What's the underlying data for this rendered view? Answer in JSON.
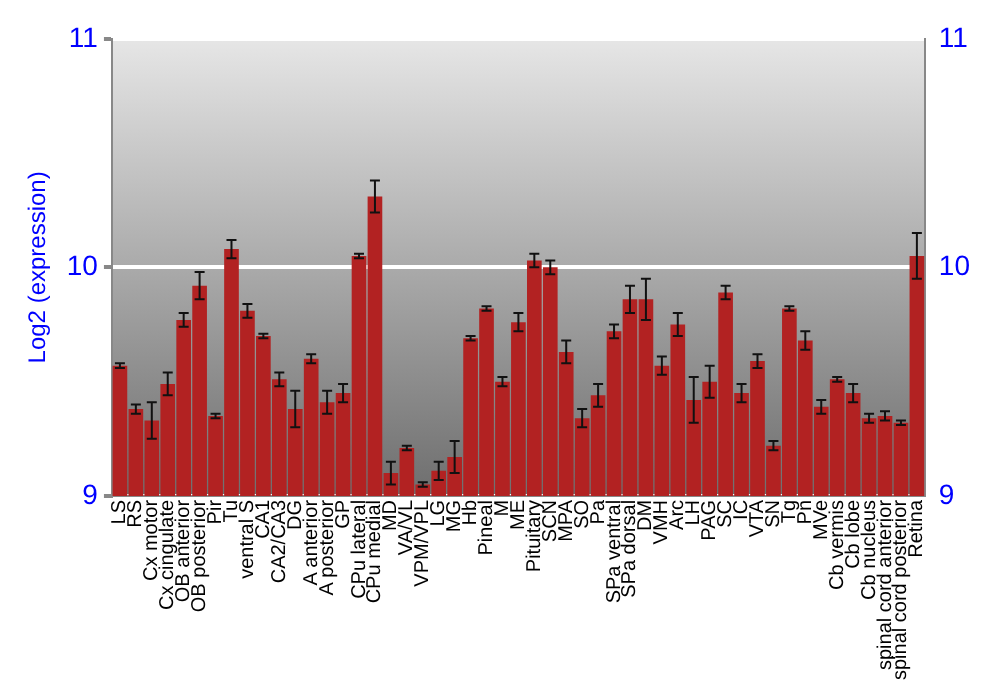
{
  "chart_data": {
    "type": "bar",
    "ylabel": "Log2 (expression)",
    "categories": [
      "LS",
      "RS",
      "Cx motor",
      "Cx cingulate",
      "OB anterior",
      "OB posterior",
      "Pir",
      "Tu",
      "ventral S",
      "CA1",
      "CA2/CA3",
      "DG",
      "A anterior",
      "A posterior",
      "GP",
      "CPu lateral",
      "CPu medial",
      "MD",
      "VA/VL",
      "VPM/VPL",
      "LG",
      "MG",
      "Hb",
      "Pineal",
      "M",
      "ME",
      "Pituitary",
      "SCN",
      "MPA",
      "SO",
      "Pa",
      "SPa ventral",
      "SPa dorsal",
      "DM",
      "VMH",
      "Arc",
      "LH",
      "PAG",
      "SC",
      "IC",
      "VTA",
      "SN",
      "Tg",
      "Pn",
      "MVe",
      "Cb vermis",
      "Cb lobe",
      "Cb nucleus",
      "spinal cord anterior",
      "spinal cord posterior",
      "Retina"
    ],
    "series": [
      {
        "color": "#b22222",
        "values": [
          9.57,
          9.38,
          9.33,
          9.49,
          9.77,
          9.92,
          9.35,
          10.08,
          9.81,
          9.7,
          9.51,
          9.38,
          9.6,
          9.41,
          9.45,
          10.05,
          10.31,
          9.1,
          9.21,
          9.05,
          9.11,
          9.17,
          9.69,
          9.82,
          9.5,
          9.76,
          10.03,
          10.0,
          9.63,
          9.34,
          9.44,
          9.72,
          9.86,
          9.86,
          9.57,
          9.75,
          9.42,
          9.5,
          9.89,
          9.45,
          9.59,
          9.22,
          9.82,
          9.68,
          9.39,
          9.51,
          9.45,
          9.34,
          9.35,
          9.32,
          10.05
        ],
        "errors": [
          0.01,
          0.02,
          0.08,
          0.05,
          0.03,
          0.06,
          0.01,
          0.04,
          0.03,
          0.01,
          0.03,
          0.08,
          0.02,
          0.05,
          0.04,
          0.01,
          0.07,
          0.05,
          0.01,
          0.01,
          0.04,
          0.07,
          0.01,
          0.01,
          0.02,
          0.04,
          0.03,
          0.03,
          0.05,
          0.04,
          0.05,
          0.03,
          0.06,
          0.09,
          0.04,
          0.05,
          0.1,
          0.07,
          0.03,
          0.04,
          0.03,
          0.02,
          0.01,
          0.04,
          0.03,
          0.01,
          0.04,
          0.02,
          0.02,
          0.01,
          0.1
        ]
      }
    ],
    "ylim": [
      9,
      11
    ],
    "yticks": [
      9,
      10,
      11
    ],
    "y2lim": [
      9,
      11
    ],
    "y2ticks": [
      9,
      10,
      11
    ],
    "grid": "y"
  }
}
